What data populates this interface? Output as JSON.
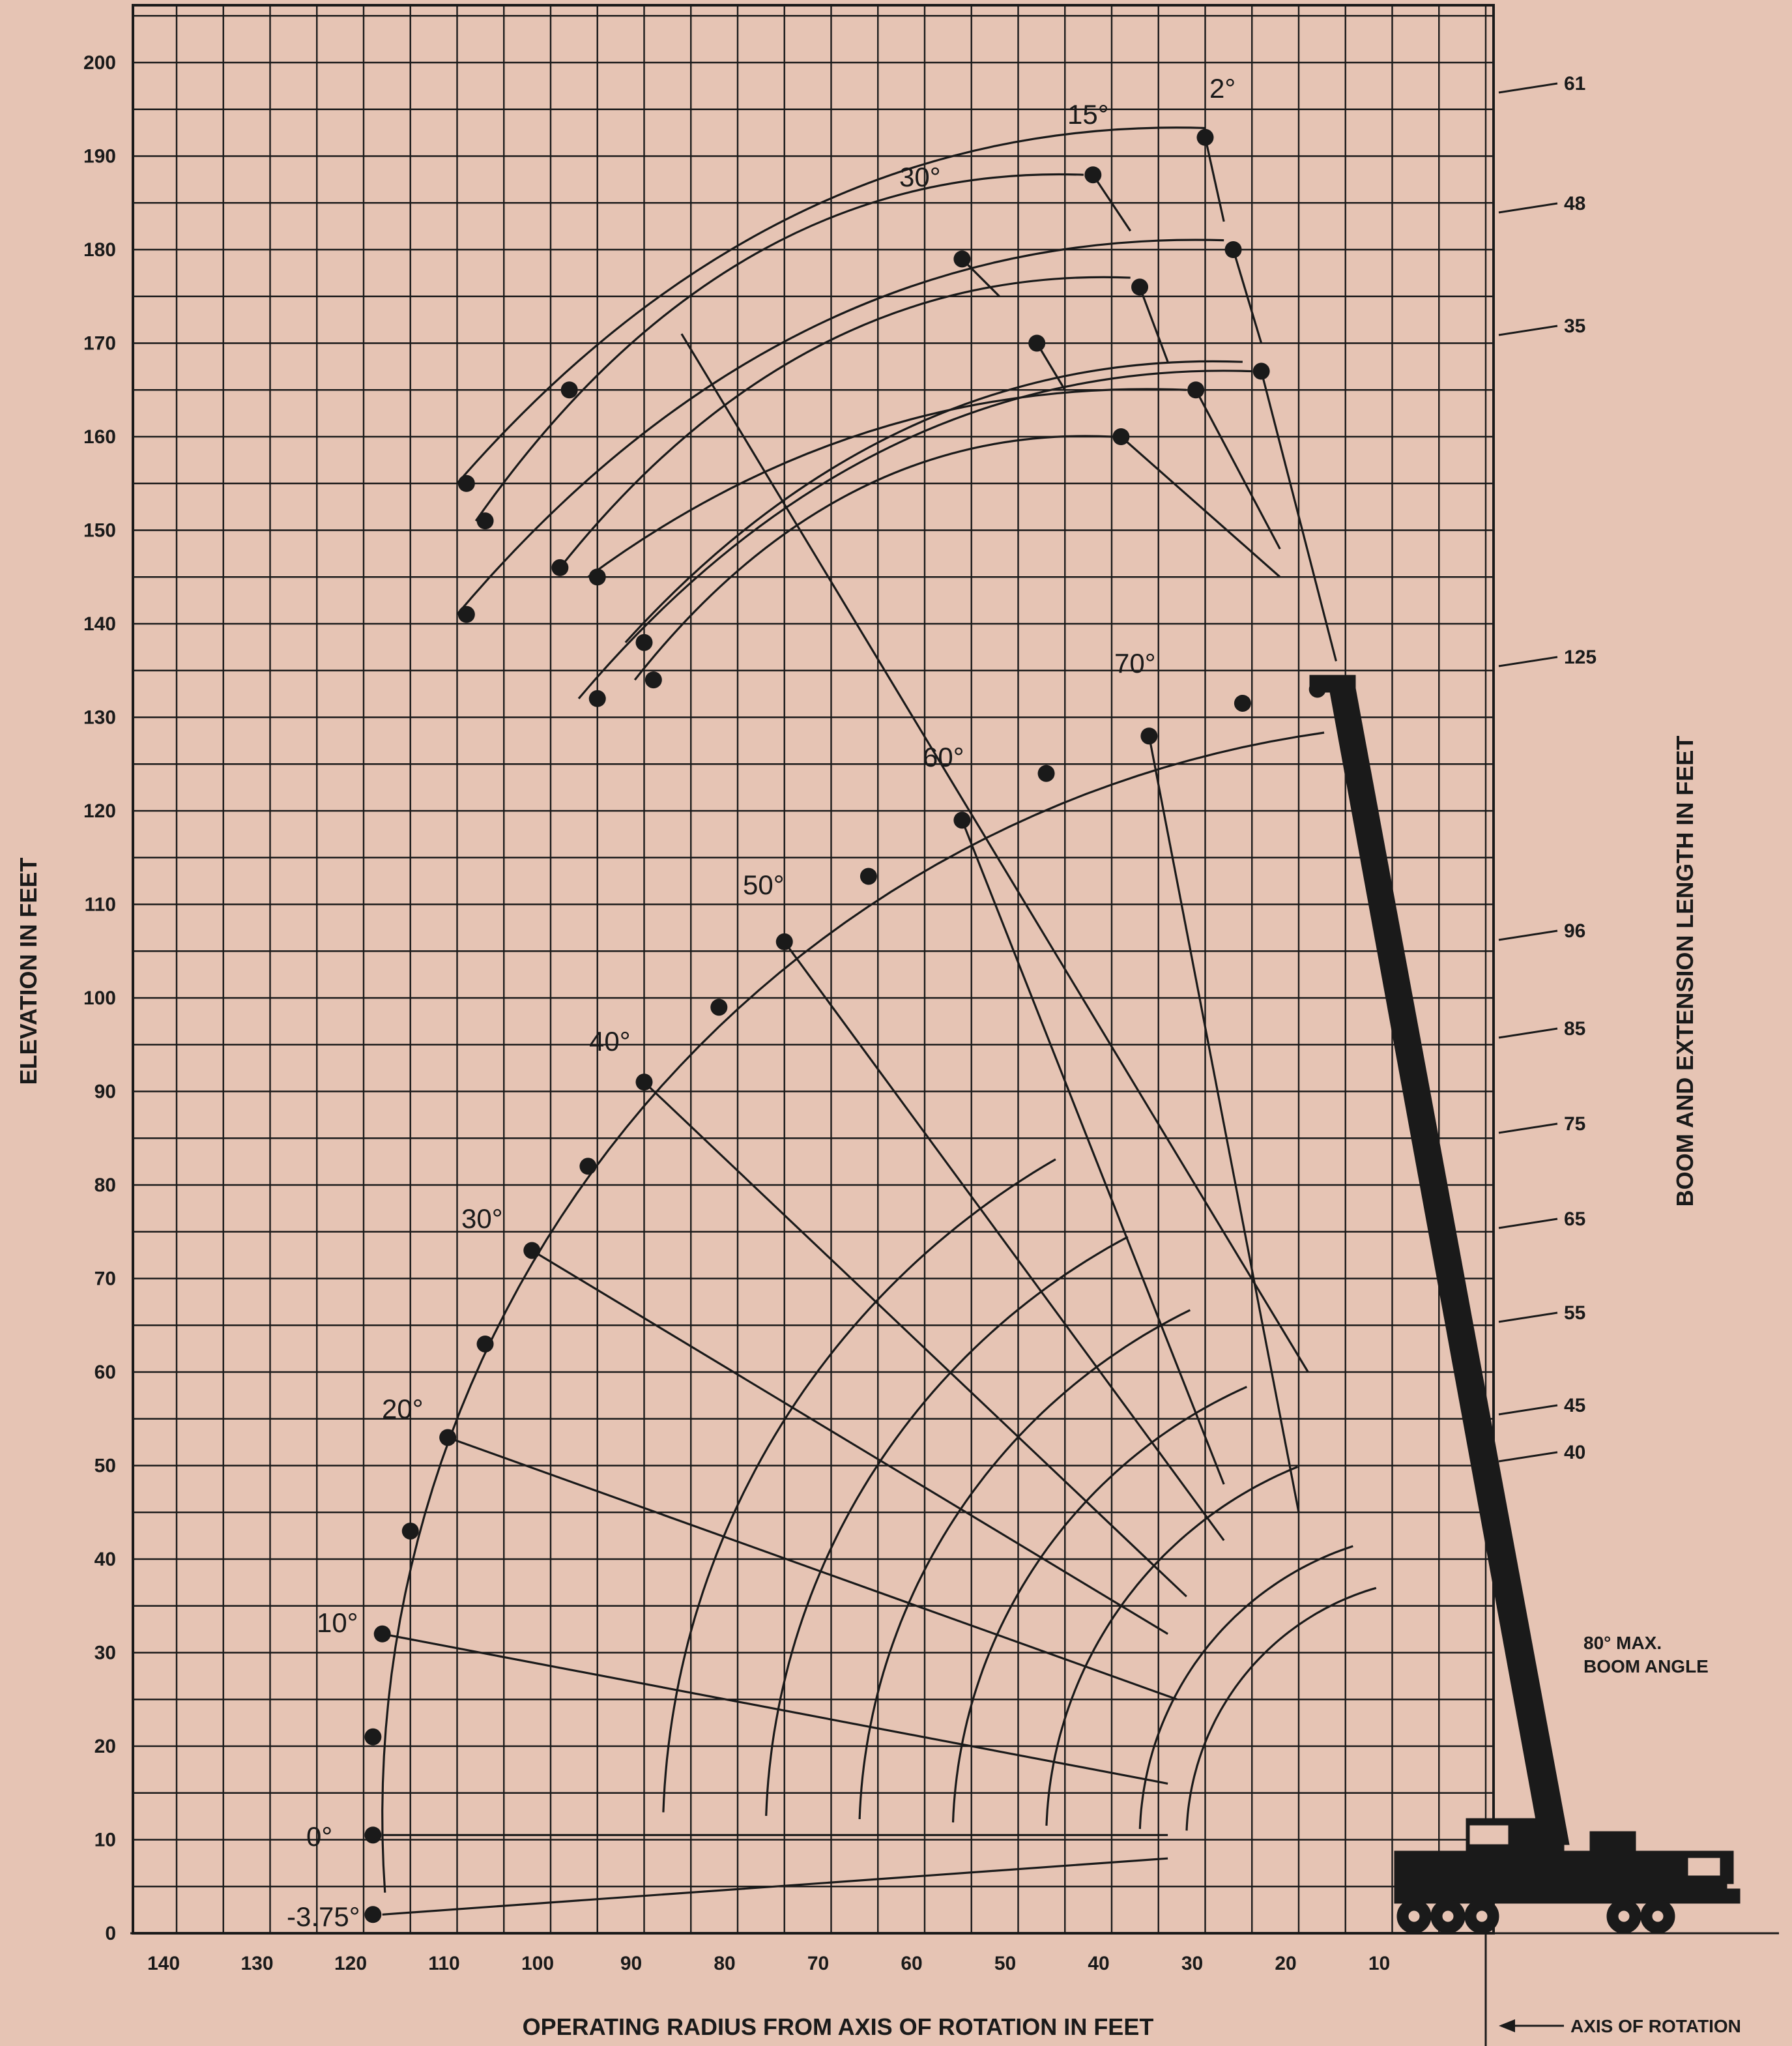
{
  "axes": {
    "y_label": "ELEVATION IN FEET",
    "x_label": "OPERATING RADIUS FROM AXIS OF ROTATION IN FEET",
    "right_label": "BOOM AND EXTENSION LENGTH IN FEET",
    "axis_of_rotation_label": "AXIS OF ROTATION",
    "y_ticks": [
      "0",
      "10",
      "20",
      "30",
      "40",
      "50",
      "60",
      "70",
      "80",
      "90",
      "100",
      "110",
      "120",
      "130",
      "140",
      "150",
      "160",
      "170",
      "180",
      "190",
      "200"
    ],
    "x_ticks": [
      "140",
      "130",
      "120",
      "110",
      "100",
      "90",
      "80",
      "70",
      "60",
      "50",
      "40",
      "30",
      "20",
      "10"
    ]
  },
  "boom_lengths": [
    "61",
    "48",
    "35",
    "125",
    "96",
    "85",
    "75",
    "65",
    "55",
    "45",
    "40"
  ],
  "boom_angle_labels": [
    "-3.75°",
    "0°",
    "10°",
    "20°",
    "30°",
    "40°",
    "50°",
    "60°",
    "70°"
  ],
  "extension_angle_labels": [
    "30°",
    "15°",
    "2°"
  ],
  "note": {
    "line1": "80° MAX.",
    "line2": "BOOM ANGLE"
  },
  "colors": {
    "background": "#e6c4b4",
    "ink": "#1a1a1a"
  }
}
